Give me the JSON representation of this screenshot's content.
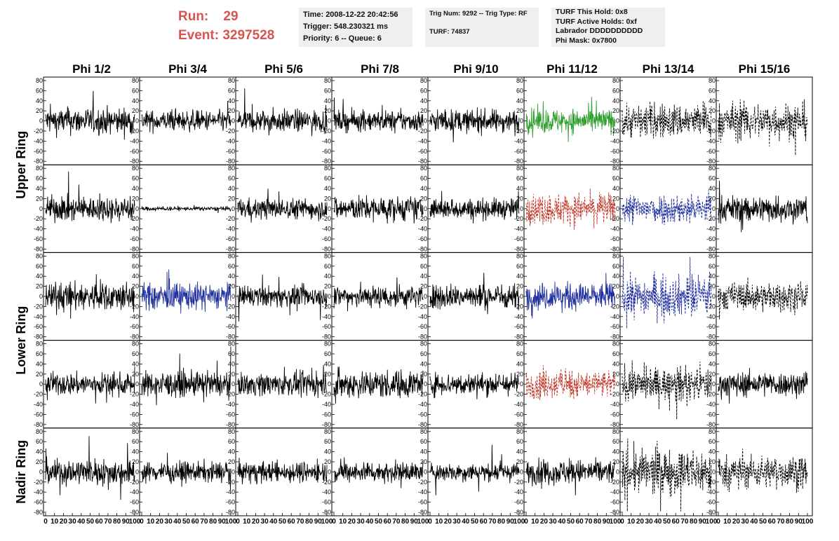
{
  "run": {
    "label": "Run:",
    "value": "29"
  },
  "event": {
    "label": "Event:",
    "value": "3297528"
  },
  "info1": [
    "Time: 2008-12-22 20:42:56",
    "Trigger: 548.230321 ms",
    "Priority: 6 -- Queue: 6"
  ],
  "info2": [
    "Trig Num: 9292 -- Trig Type: RF",
    "TURF: 74837"
  ],
  "info3": [
    "TURF This Hold: 0x8",
    "TURF Active Holds: 0xf",
    "Labrador DDDDDDDDDD",
    "Phi Mask: 0x7800"
  ],
  "colors": {
    "run_text": "#d9534f",
    "green": "#2e9e2e",
    "red": "#c0392b",
    "blue": "#1f2f9e",
    "black": "#000000",
    "box_bg": "#efefef"
  },
  "chart_data": {
    "type": "line",
    "columns": [
      "Phi 1/2",
      "Phi 3/4",
      "Phi 5/6",
      "Phi 7/8",
      "Phi 9/10",
      "Phi 11/12",
      "Phi 13/14",
      "Phi 15/16"
    ],
    "ring_labels": [
      "Upper Ring",
      "Lower Ring",
      "Nadir Ring"
    ],
    "rows": 5,
    "ylim": [
      -80,
      80
    ],
    "y_ticks": [
      -80,
      -60,
      -40,
      -20,
      0,
      20,
      40,
      60,
      80
    ],
    "xlim": [
      0,
      100
    ],
    "x_ticks": [
      0,
      10,
      20,
      30,
      40,
      50,
      60,
      70,
      80,
      90,
      100
    ],
    "grid": false,
    "panels": [
      [
        {
          "color": "black",
          "style": "solid",
          "amp": 13
        },
        {
          "color": "black",
          "style": "solid",
          "amp": 10
        },
        {
          "color": "black",
          "style": "solid",
          "amp": 11
        },
        {
          "color": "black",
          "style": "solid",
          "amp": 10
        },
        {
          "color": "black",
          "style": "solid",
          "amp": 11
        },
        {
          "color": "green",
          "style": "solid",
          "amp": 12
        },
        {
          "color": "black",
          "style": "dashed",
          "amp": 17
        },
        {
          "color": "black",
          "style": "dashed",
          "amp": 18
        }
      ],
      [
        {
          "color": "black",
          "style": "solid",
          "amp": 12
        },
        {
          "color": "black",
          "style": "solid",
          "amp": 2
        },
        {
          "color": "black",
          "style": "solid",
          "amp": 10
        },
        {
          "color": "black",
          "style": "solid",
          "amp": 12
        },
        {
          "color": "black",
          "style": "solid",
          "amp": 10
        },
        {
          "color": "red",
          "style": "dashed",
          "amp": 15
        },
        {
          "color": "blue",
          "style": "dashed",
          "amp": 15
        },
        {
          "color": "black",
          "style": "solid",
          "amp": 13
        }
      ],
      [
        {
          "color": "black",
          "style": "solid",
          "amp": 14
        },
        {
          "color": "blue",
          "style": "solid",
          "amp": 13
        },
        {
          "color": "black",
          "style": "solid",
          "amp": 10
        },
        {
          "color": "black",
          "style": "solid",
          "amp": 11
        },
        {
          "color": "black",
          "style": "solid",
          "amp": 12
        },
        {
          "color": "blue",
          "style": "solid",
          "amp": 13
        },
        {
          "color": "blue",
          "style": "dashed",
          "amp": 20
        },
        {
          "color": "black",
          "style": "dashed",
          "amp": 14
        }
      ],
      [
        {
          "color": "black",
          "style": "solid",
          "amp": 11
        },
        {
          "color": "black",
          "style": "solid",
          "amp": 12
        },
        {
          "color": "black",
          "style": "solid",
          "amp": 11
        },
        {
          "color": "black",
          "style": "solid",
          "amp": 14
        },
        {
          "color": "black",
          "style": "solid",
          "amp": 11
        },
        {
          "color": "red",
          "style": "dashed",
          "amp": 14
        },
        {
          "color": "black",
          "style": "dashed",
          "amp": 16
        },
        {
          "color": "black",
          "style": "solid",
          "amp": 12
        }
      ],
      [
        {
          "color": "black",
          "style": "solid",
          "amp": 13
        },
        {
          "color": "black",
          "style": "solid",
          "amp": 10
        },
        {
          "color": "black",
          "style": "solid",
          "amp": 10
        },
        {
          "color": "black",
          "style": "solid",
          "amp": 10
        },
        {
          "color": "black",
          "style": "solid",
          "amp": 9
        },
        {
          "color": "black",
          "style": "solid",
          "amp": 12
        },
        {
          "color": "black",
          "style": "dashed",
          "amp": 22
        },
        {
          "color": "black",
          "style": "dashed",
          "amp": 16
        }
      ]
    ]
  }
}
